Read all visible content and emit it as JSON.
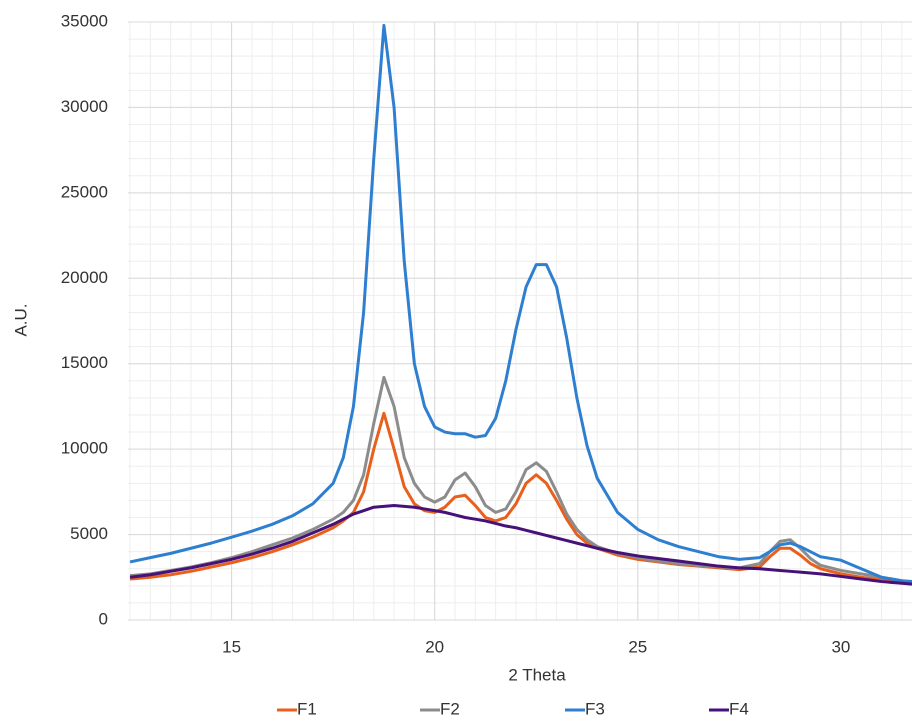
{
  "chart_data": {
    "type": "line",
    "x_label": "2 Theta",
    "y_label": "A.U.",
    "xlim": [
      12.45,
      31.75
    ],
    "xticks": [
      15,
      20,
      25,
      30
    ],
    "ylim": [
      0,
      35000
    ],
    "yticks": [
      0,
      5000,
      10000,
      15000,
      20000,
      25000,
      30000,
      35000
    ],
    "grid": true,
    "minor_grid": true,
    "legend": "bottom",
    "x": [
      12.5,
      13,
      13.5,
      14,
      14.5,
      15,
      15.5,
      16,
      16.5,
      17,
      17.5,
      17.75,
      18,
      18.25,
      18.5,
      18.75,
      19,
      19.25,
      19.5,
      19.75,
      20,
      20.25,
      20.5,
      20.75,
      21,
      21.25,
      21.5,
      21.75,
      22,
      22.25,
      22.5,
      22.75,
      23,
      23.25,
      23.5,
      23.75,
      24,
      24.5,
      25,
      25.5,
      26,
      26.5,
      27,
      27.5,
      28,
      28.25,
      28.5,
      28.75,
      29,
      29.25,
      29.5,
      30,
      30.5,
      31,
      31.5,
      31.75
    ],
    "series": [
      {
        "name": "F1",
        "color": "#e8601c",
        "values": [
          2400,
          2500,
          2650,
          2850,
          3100,
          3350,
          3650,
          4000,
          4400,
          4850,
          5400,
          5800,
          6300,
          7500,
          10000,
          12100,
          10000,
          7800,
          6800,
          6400,
          6300,
          6600,
          7200,
          7300,
          6700,
          6000,
          5800,
          6000,
          6800,
          8000,
          8500,
          8000,
          7000,
          5900,
          5000,
          4500,
          4200,
          3800,
          3550,
          3400,
          3250,
          3150,
          3050,
          2950,
          3100,
          3700,
          4200,
          4200,
          3800,
          3300,
          3000,
          2700,
          2500,
          2350,
          2200,
          2100
        ]
      },
      {
        "name": "F2",
        "color": "#8c8c8c",
        "values": [
          2600,
          2700,
          2900,
          3100,
          3350,
          3650,
          4000,
          4400,
          4800,
          5300,
          5900,
          6300,
          7000,
          8500,
          11500,
          14200,
          12500,
          9500,
          8000,
          7200,
          6900,
          7200,
          8200,
          8600,
          7800,
          6700,
          6300,
          6500,
          7500,
          8800,
          9200,
          8700,
          7500,
          6200,
          5300,
          4700,
          4300,
          3900,
          3650,
          3450,
          3300,
          3200,
          3100,
          3050,
          3300,
          4000,
          4600,
          4700,
          4200,
          3600,
          3200,
          2900,
          2700,
          2500,
          2300,
          2200
        ]
      },
      {
        "name": "F3",
        "color": "#2e7fd0",
        "values": [
          3400,
          3650,
          3900,
          4200,
          4500,
          4850,
          5200,
          5600,
          6100,
          6800,
          8000,
          9500,
          12500,
          18000,
          27000,
          34800,
          30000,
          21000,
          15000,
          12500,
          11300,
          11000,
          10900,
          10900,
          10700,
          10800,
          11800,
          14000,
          17000,
          19500,
          20800,
          20800,
          19500,
          16500,
          13000,
          10200,
          8300,
          6300,
          5300,
          4700,
          4300,
          4000,
          3700,
          3550,
          3650,
          4000,
          4400,
          4500,
          4300,
          4000,
          3700,
          3500,
          3000,
          2500,
          2300,
          2250
        ]
      },
      {
        "name": "F4",
        "color": "#46127a",
        "values": [
          2500,
          2650,
          2850,
          3050,
          3300,
          3550,
          3850,
          4200,
          4600,
          5100,
          5600,
          5900,
          6200,
          6400,
          6600,
          6650,
          6700,
          6650,
          6600,
          6500,
          6400,
          6300,
          6150,
          6000,
          5900,
          5800,
          5650,
          5500,
          5400,
          5250,
          5100,
          4950,
          4800,
          4650,
          4500,
          4350,
          4200,
          3950,
          3750,
          3600,
          3450,
          3300,
          3150,
          3050,
          3000,
          2950,
          2900,
          2850,
          2800,
          2750,
          2700,
          2550,
          2400,
          2250,
          2150,
          2100
        ]
      }
    ]
  }
}
